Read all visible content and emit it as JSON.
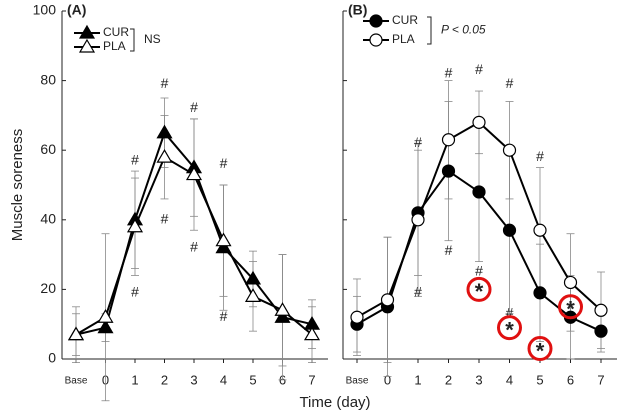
{
  "chart_data": [
    {
      "type": "line",
      "panel_label": "(A)",
      "y_label": "Muscle soreness",
      "categories": [
        "Base",
        "0",
        "1",
        "2",
        "3",
        "4",
        "5",
        "6",
        "7"
      ],
      "ylim": [
        0,
        100
      ],
      "yticks": [
        0,
        20,
        40,
        60,
        80,
        100
      ],
      "ytick_labels": true,
      "series": [
        {
          "name": "CUR",
          "color": "#000000",
          "marker": "triangle",
          "fill": "#000000",
          "values": [
            7,
            9,
            40,
            65,
            55,
            32,
            23,
            12,
            10
          ],
          "errors": [
            8,
            4,
            14,
            10,
            14,
            18,
            8,
            18,
            7
          ]
        },
        {
          "name": "PLA",
          "color": "#000000",
          "marker": "triangle",
          "fill": "#ffffff",
          "values": [
            7,
            12,
            38,
            58,
            53,
            34,
            18,
            14,
            7
          ],
          "errors": [
            6,
            24,
            14,
            12,
            16,
            16,
            10,
            16,
            8
          ]
        }
      ],
      "legend_note": "NS",
      "annotations": [
        {
          "text": "#",
          "x": "1",
          "y": 57
        },
        {
          "text": "#",
          "x": "1",
          "y": 19
        },
        {
          "text": "#",
          "x": "2",
          "y": 79
        },
        {
          "text": "#",
          "x": "2",
          "y": 40
        },
        {
          "text": "#",
          "x": "3",
          "y": 72
        },
        {
          "text": "#",
          "x": "3",
          "y": 32
        },
        {
          "text": "#",
          "x": "4",
          "y": 56
        },
        {
          "text": "#",
          "x": "4",
          "y": 12
        }
      ]
    },
    {
      "type": "line",
      "panel_label": "(B)",
      "categories": [
        "Base",
        "0",
        "1",
        "2",
        "3",
        "4",
        "5",
        "6",
        "7"
      ],
      "ylim": [
        0,
        100
      ],
      "yticks": [
        0,
        20,
        40,
        60,
        80,
        100
      ],
      "ytick_labels": false,
      "series": [
        {
          "name": "CUR",
          "color": "#000000",
          "marker": "circle",
          "fill": "#000000",
          "values": [
            10,
            15,
            42,
            54,
            48,
            37,
            19,
            12,
            8
          ],
          "errors": [
            8,
            20,
            18,
            20,
            20,
            24,
            14,
            12,
            6
          ]
        },
        {
          "name": "PLA",
          "color": "#000000",
          "marker": "circle",
          "fill": "#ffffff",
          "values": [
            12,
            17,
            40,
            63,
            68,
            60,
            37,
            22,
            14
          ],
          "errors": [
            11,
            18,
            22,
            17,
            9,
            14,
            18,
            14,
            11
          ]
        }
      ],
      "legend_note": "P < 0.05",
      "annotations": [
        {
          "text": "#",
          "x": "1",
          "y": 62
        },
        {
          "text": "#",
          "x": "1",
          "y": 19
        },
        {
          "text": "#",
          "x": "2",
          "y": 82
        },
        {
          "text": "#",
          "x": "2",
          "y": 31
        },
        {
          "text": "#",
          "x": "3",
          "y": 83
        },
        {
          "text": "#",
          "x": "3",
          "y": 25
        },
        {
          "text": "#",
          "x": "4",
          "y": 79
        },
        {
          "text": "#",
          "x": "4",
          "y": 13
        },
        {
          "text": "#",
          "x": "5",
          "y": 58
        },
        {
          "text": "*",
          "x": "3",
          "y": 20,
          "circled": true
        },
        {
          "text": "*",
          "x": "4",
          "y": 9,
          "circled": true
        },
        {
          "text": "*",
          "x": "5",
          "y": 3,
          "circled": true
        },
        {
          "text": "*",
          "x": "6",
          "y": 15,
          "circled": true
        }
      ]
    }
  ],
  "x_label": "Time (day)"
}
